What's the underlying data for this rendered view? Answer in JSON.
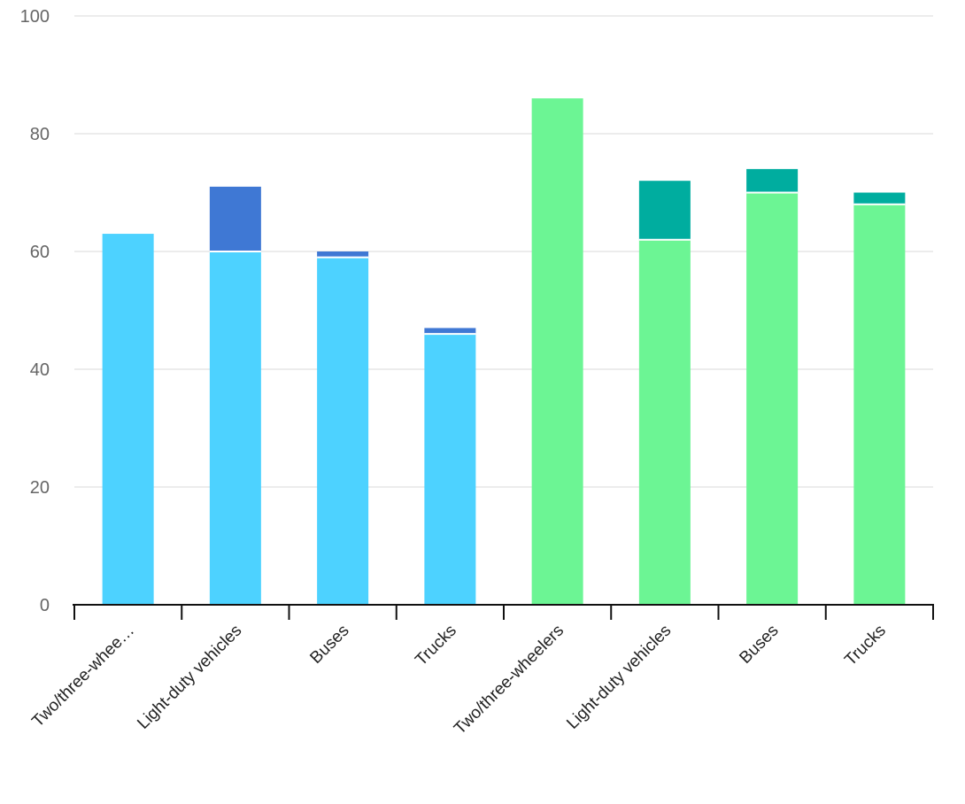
{
  "chart_data": {
    "type": "bar",
    "stacked": true,
    "title": "",
    "xlabel": "",
    "ylabel": "",
    "ylim": [
      0,
      100
    ],
    "yticks": [
      "0",
      "20",
      "40",
      "60",
      "80",
      "100"
    ],
    "grid": true,
    "legend": "none",
    "categories": [
      "Two/three-whee…",
      "Light-duty vehicles",
      "Buses",
      "Trucks",
      "Two/three-wheelers",
      "Light-duty vehicles",
      "Buses",
      "Trucks"
    ],
    "series": [
      {
        "values": [
          63,
          60,
          59,
          46,
          86,
          62,
          70,
          68
        ],
        "colors": [
          "#4dd2ff",
          "#4dd2ff",
          "#4dd2ff",
          "#4dd2ff",
          "#6cf594",
          "#6cf594",
          "#6cf594",
          "#6cf594"
        ]
      },
      {
        "values": [
          0,
          11,
          1,
          1,
          0,
          10,
          4,
          2
        ],
        "colors": [
          "#3f78d4",
          "#3f78d4",
          "#3f78d4",
          "#3f78d4",
          "#00ad9f",
          "#00ad9f",
          "#00ad9f",
          "#00ad9f"
        ]
      }
    ]
  }
}
